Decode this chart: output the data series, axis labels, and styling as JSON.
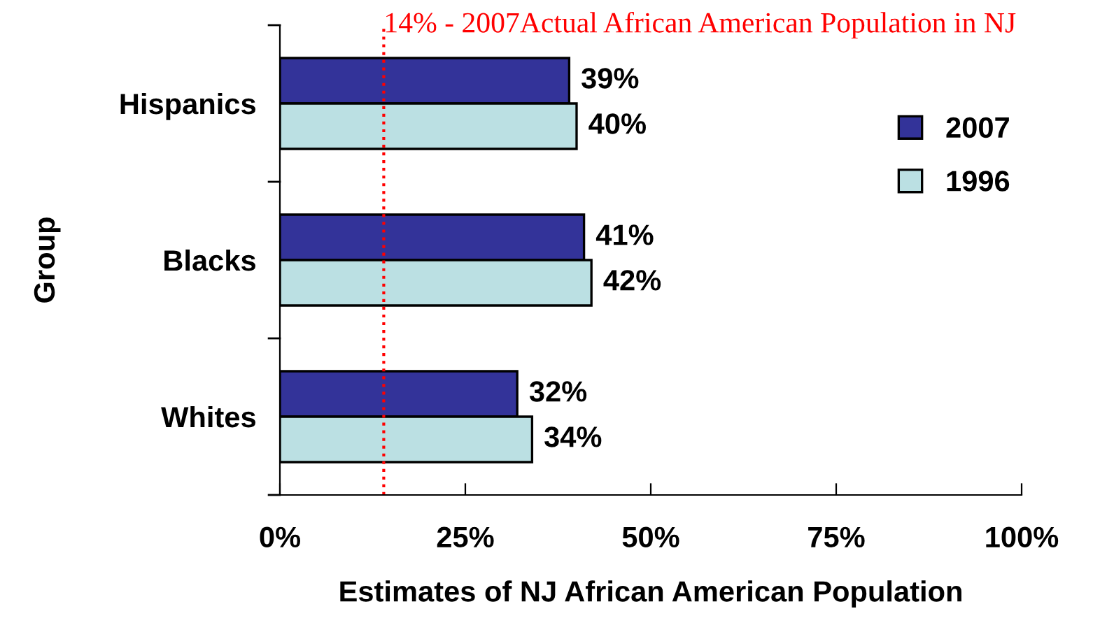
{
  "chart_data": {
    "type": "bar",
    "orientation": "horizontal",
    "ylabel": "Group",
    "xlabel": "Estimates of NJ African American Population",
    "categories": [
      "Hispanics",
      "Blacks",
      "Whites"
    ],
    "series": [
      {
        "name": "2007",
        "color": "#333399",
        "values": [
          39,
          41,
          32
        ],
        "value_labels": [
          "39%",
          "41%",
          "32%"
        ]
      },
      {
        "name": "1996",
        "color": "#bbe0e3",
        "values": [
          40,
          42,
          34
        ],
        "value_labels": [
          "40%",
          "42%",
          "34%"
        ]
      }
    ],
    "xlim": [
      0,
      100
    ],
    "xticks": [
      {
        "value": 0,
        "label": "0%"
      },
      {
        "value": 25,
        "label": "25%"
      },
      {
        "value": 50,
        "label": "50%"
      },
      {
        "value": 75,
        "label": "75%"
      },
      {
        "value": 100,
        "label": "100%"
      }
    ],
    "ref_lines": [
      {
        "axis": "x",
        "value": 14,
        "label": "14% - 2007Actual African American Population in NJ",
        "color": "#ff0000",
        "line_style": "dotted"
      }
    ],
    "legend": "right",
    "grid": false
  }
}
